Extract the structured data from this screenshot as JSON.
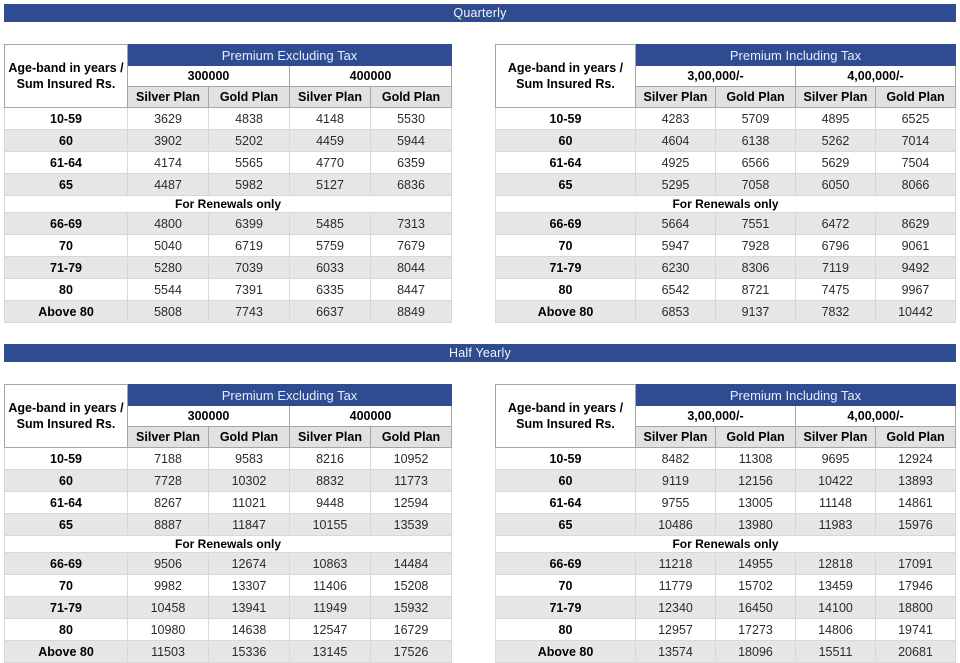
{
  "colors": {
    "banner_blue": "#2e4c8f",
    "zebra_gray": "#e7e6e6",
    "plan_header_gray": "#e2e1e1",
    "header_text": "#f3f7fd"
  },
  "labels": {
    "age_band_header": "Age-band in years / Sum Insured Rs.",
    "renewals_note": "For Renewals only"
  },
  "sections": [
    {
      "title": "Quarterly",
      "tables": [
        {
          "title": "Premium Excluding Tax",
          "sum_insured": [
            "300000",
            "400000"
          ],
          "plans": [
            "Silver Plan",
            "Gold Plan",
            "Silver Plan",
            "Gold Plan"
          ],
          "rows_new": [
            {
              "age": "10-59",
              "values": [
                3629,
                4838,
                4148,
                5530
              ]
            },
            {
              "age": "60",
              "values": [
                3902,
                5202,
                4459,
                5944
              ]
            },
            {
              "age": "61-64",
              "values": [
                4174,
                5565,
                4770,
                6359
              ]
            },
            {
              "age": "65",
              "values": [
                4487,
                5982,
                5127,
                6836
              ]
            }
          ],
          "rows_renewal": [
            {
              "age": "66-69",
              "values": [
                4800,
                6399,
                5485,
                7313
              ]
            },
            {
              "age": "70",
              "values": [
                5040,
                6719,
                5759,
                7679
              ]
            },
            {
              "age": "71-79",
              "values": [
                5280,
                7039,
                6033,
                8044
              ]
            },
            {
              "age": "80",
              "values": [
                5544,
                7391,
                6335,
                8447
              ]
            },
            {
              "age": "Above 80",
              "values": [
                5808,
                7743,
                6637,
                8849
              ]
            }
          ]
        },
        {
          "title": "Premium Including Tax",
          "sum_insured": [
            "3,00,000/-",
            "4,00,000/-"
          ],
          "plans": [
            "Silver Plan",
            "Gold Plan",
            "Silver Plan",
            "Gold Plan"
          ],
          "rows_new": [
            {
              "age": "10-59",
              "values": [
                4283,
                5709,
                4895,
                6525
              ]
            },
            {
              "age": "60",
              "values": [
                4604,
                6138,
                5262,
                7014
              ]
            },
            {
              "age": "61-64",
              "values": [
                4925,
                6566,
                5629,
                7504
              ]
            },
            {
              "age": "65",
              "values": [
                5295,
                7058,
                6050,
                8066
              ]
            }
          ],
          "rows_renewal": [
            {
              "age": "66-69",
              "values": [
                5664,
                7551,
                6472,
                8629
              ]
            },
            {
              "age": "70",
              "values": [
                5947,
                7928,
                6796,
                9061
              ]
            },
            {
              "age": "71-79",
              "values": [
                6230,
                8306,
                7119,
                9492
              ]
            },
            {
              "age": "80",
              "values": [
                6542,
                8721,
                7475,
                9967
              ]
            },
            {
              "age": "Above 80",
              "values": [
                6853,
                9137,
                7832,
                10442
              ]
            }
          ]
        }
      ]
    },
    {
      "title": "Half Yearly",
      "tables": [
        {
          "title": "Premium Excluding Tax",
          "sum_insured": [
            "300000",
            "400000"
          ],
          "plans": [
            "Silver Plan",
            "Gold Plan",
            "Silver Plan",
            "Gold Plan"
          ],
          "rows_new": [
            {
              "age": "10-59",
              "values": [
                7188,
                9583,
                8216,
                10952
              ]
            },
            {
              "age": "60",
              "values": [
                7728,
                10302,
                8832,
                11773
              ]
            },
            {
              "age": "61-64",
              "values": [
                8267,
                11021,
                9448,
                12594
              ]
            },
            {
              "age": "65",
              "values": [
                8887,
                11847,
                10155,
                13539
              ]
            }
          ],
          "rows_renewal": [
            {
              "age": "66-69",
              "values": [
                9506,
                12674,
                10863,
                14484
              ]
            },
            {
              "age": "70",
              "values": [
                9982,
                13307,
                11406,
                15208
              ]
            },
            {
              "age": "71-79",
              "values": [
                10458,
                13941,
                11949,
                15932
              ]
            },
            {
              "age": "80",
              "values": [
                10980,
                14638,
                12547,
                16729
              ]
            },
            {
              "age": "Above 80",
              "values": [
                11503,
                15336,
                13145,
                17526
              ]
            }
          ]
        },
        {
          "title": "Premium Including Tax",
          "sum_insured": [
            "3,00,000/-",
            "4,00,000/-"
          ],
          "plans": [
            "Silver Plan",
            "Gold Plan",
            "Silver Plan",
            "Gold Plan"
          ],
          "rows_new": [
            {
              "age": "10-59",
              "values": [
                8482,
                11308,
                9695,
                12924
              ]
            },
            {
              "age": "60",
              "values": [
                9119,
                12156,
                10422,
                13893
              ]
            },
            {
              "age": "61-64",
              "values": [
                9755,
                13005,
                11148,
                14861
              ]
            },
            {
              "age": "65",
              "values": [
                10486,
                13980,
                11983,
                15976
              ]
            }
          ],
          "rows_renewal": [
            {
              "age": "66-69",
              "values": [
                11218,
                14955,
                12818,
                17091
              ]
            },
            {
              "age": "70",
              "values": [
                11779,
                15702,
                13459,
                17946
              ]
            },
            {
              "age": "71-79",
              "values": [
                12340,
                16450,
                14100,
                18800
              ]
            },
            {
              "age": "80",
              "values": [
                12957,
                17273,
                14806,
                19741
              ]
            },
            {
              "age": "Above 80",
              "values": [
                13574,
                18096,
                15511,
                20681
              ]
            }
          ]
        }
      ]
    }
  ]
}
